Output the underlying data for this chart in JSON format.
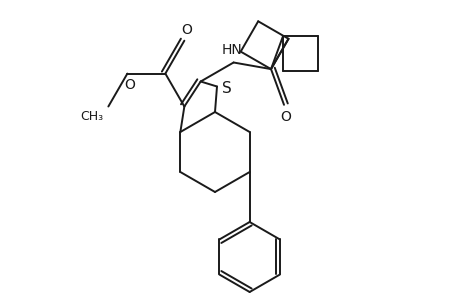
{
  "bg_color": "#ffffff",
  "line_color": "#1a1a1a",
  "line_width": 1.4,
  "font_size": 10,
  "fig_width": 4.6,
  "fig_height": 3.0,
  "dpi": 100,
  "xlim": [
    0,
    460
  ],
  "ylim": [
    0,
    300
  ]
}
